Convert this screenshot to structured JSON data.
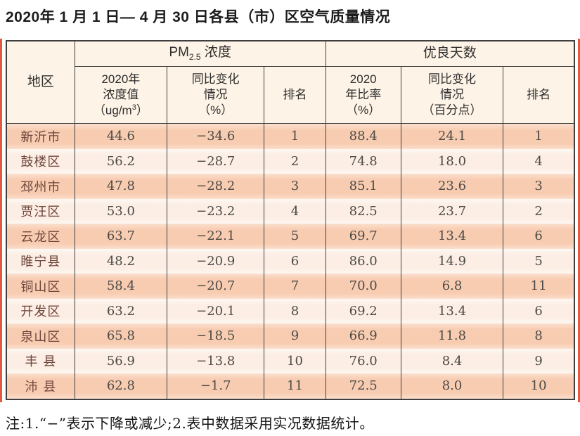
{
  "page": {
    "title": "2020年 1 月 1 日— 4 月 30 日各县（市）区空气质量情况",
    "footnote": "注:1.“−”表示下降或减少;2.表中数据采用实况数据统计。"
  },
  "colors": {
    "row_odd": "#f8ccb1",
    "row_even": "#fceee4",
    "header_bg": "#fdf3e6",
    "border": "#3f3f3f",
    "region_text": "#6e453b",
    "red_edge": "#e2593f"
  },
  "table": {
    "header": {
      "region": "地区",
      "pm_group": {
        "pm": "PM",
        "sub": "2.5",
        "rest": " 浓度"
      },
      "good_days_group": "优良天数",
      "pm_value_col": {
        "line1": "2020年",
        "line2": "浓度值",
        "line3_pre": "（ug/m",
        "line3_sup": "3",
        "line3_post": "）"
      },
      "pm_change_col": {
        "line1": "同比变化",
        "line2": "情况",
        "line3": "（%）"
      },
      "pm_rank_col": "排名",
      "ratio_col": {
        "line1": "2020",
        "line2": "年比率",
        "line3": "（%）"
      },
      "ratio_change_col": {
        "line1": "同比变化",
        "line2": "情况",
        "line3": "（百分点）"
      },
      "ratio_rank_col": "排名"
    },
    "rows": [
      {
        "region": "新沂市",
        "pm_value": "44.6",
        "pm_change": "−34.6",
        "pm_rank": "1",
        "ratio": "88.4",
        "ratio_change": "24.1",
        "ratio_rank": "1"
      },
      {
        "region": "鼓楼区",
        "pm_value": "56.2",
        "pm_change": "−28.7",
        "pm_rank": "2",
        "ratio": "74.8",
        "ratio_change": "18.0",
        "ratio_rank": "4"
      },
      {
        "region": "邳州市",
        "pm_value": "47.8",
        "pm_change": "−28.2",
        "pm_rank": "3",
        "ratio": "85.1",
        "ratio_change": "23.6",
        "ratio_rank": "3"
      },
      {
        "region": "贾汪区",
        "pm_value": "53.0",
        "pm_change": "−23.2",
        "pm_rank": "4",
        "ratio": "82.5",
        "ratio_change": "23.7",
        "ratio_rank": "2"
      },
      {
        "region": "云龙区",
        "pm_value": "63.7",
        "pm_change": "−22.1",
        "pm_rank": "5",
        "ratio": "69.7",
        "ratio_change": "13.4",
        "ratio_rank": "6"
      },
      {
        "region": "睢宁县",
        "pm_value": "48.2",
        "pm_change": "−20.9",
        "pm_rank": "6",
        "ratio": "86.0",
        "ratio_change": "14.9",
        "ratio_rank": "5"
      },
      {
        "region": "铜山区",
        "pm_value": "58.4",
        "pm_change": "−20.7",
        "pm_rank": "7",
        "ratio": "70.0",
        "ratio_change": "6.8",
        "ratio_rank": "11"
      },
      {
        "region": "开发区",
        "pm_value": "63.2",
        "pm_change": "−20.1",
        "pm_rank": "8",
        "ratio": "69.2",
        "ratio_change": "13.4",
        "ratio_rank": "6"
      },
      {
        "region": "泉山区",
        "pm_value": "65.8",
        "pm_change": "−18.5",
        "pm_rank": "9",
        "ratio": "66.9",
        "ratio_change": "11.8",
        "ratio_rank": "8"
      },
      {
        "region": "丰 县",
        "pm_value": "56.9",
        "pm_change": "−13.8",
        "pm_rank": "10",
        "ratio": "76.0",
        "ratio_change": "8.4",
        "ratio_rank": "9"
      },
      {
        "region": "沛 县",
        "pm_value": "62.8",
        "pm_change": "−1.7",
        "pm_rank": "11",
        "ratio": "72.5",
        "ratio_change": "8.0",
        "ratio_rank": "10"
      }
    ]
  }
}
